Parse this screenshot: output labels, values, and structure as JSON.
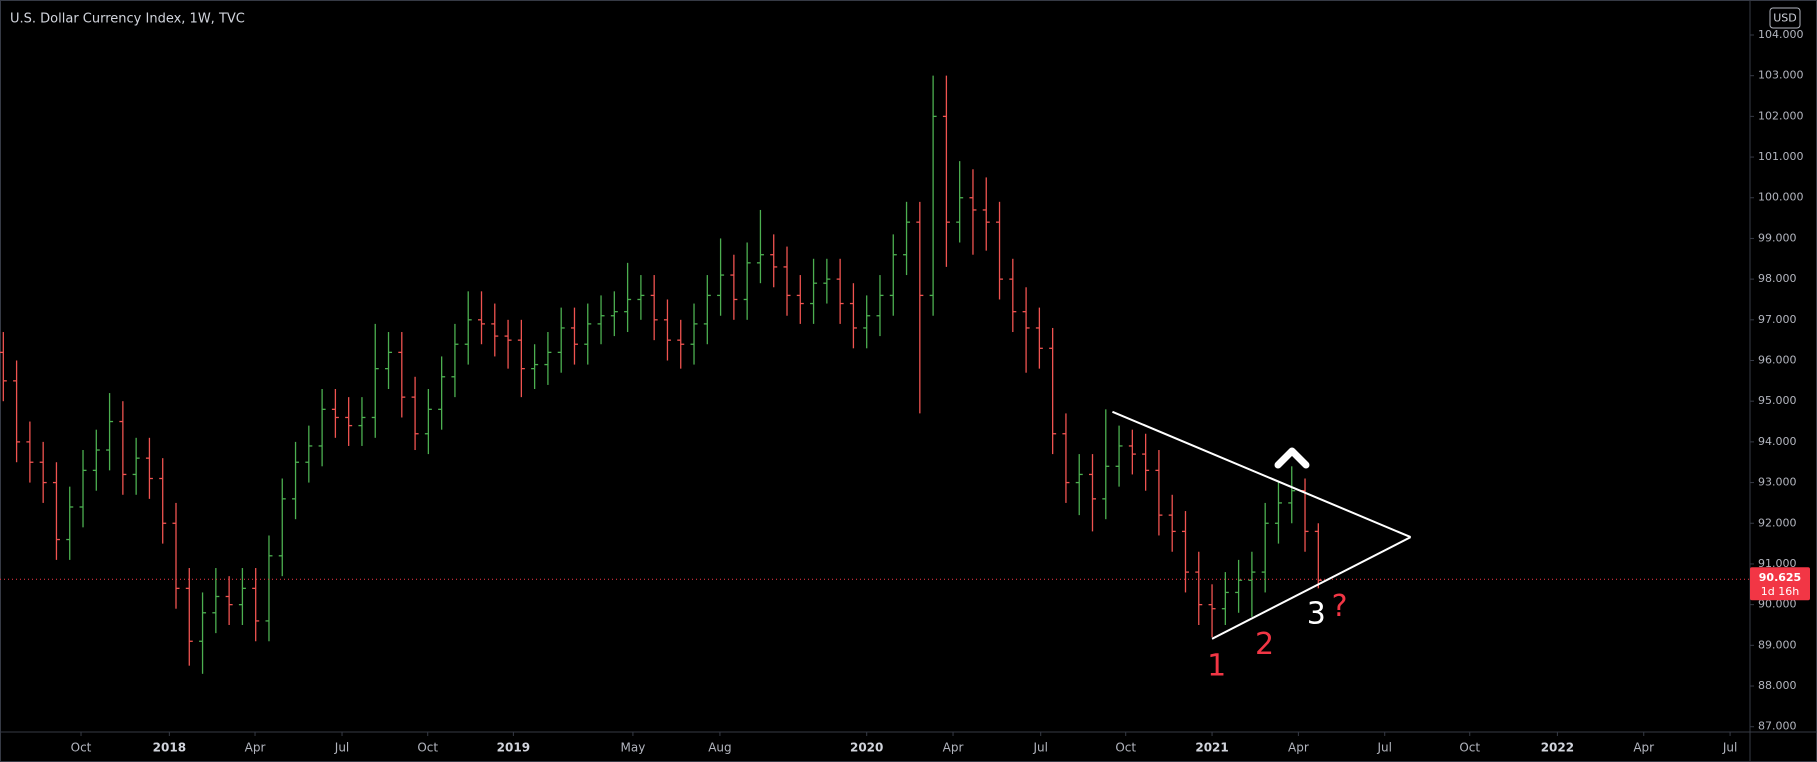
{
  "chart_data": {
    "type": "ohlc",
    "title": "U.S. Dollar Currency Index, 1W, TVC",
    "currency": "USD",
    "up_color": "#4caf50",
    "down_color": "#ef5350",
    "xlim": [
      -0.5,
      263
    ],
    "ylim": [
      86.87,
      104.86
    ],
    "grid": false,
    "xticks": [
      {
        "value": 11.7,
        "label": "Oct"
      },
      {
        "value": 25,
        "label": "2018"
      },
      {
        "value": 37.9,
        "label": "Apr"
      },
      {
        "value": 51,
        "label": "Jul"
      },
      {
        "value": 63.9,
        "label": "Oct"
      },
      {
        "value": 76.8,
        "label": "2019"
      },
      {
        "value": 94.8,
        "label": "May"
      },
      {
        "value": 107.9,
        "label": "Aug"
      },
      {
        "value": 130,
        "label": "2020"
      },
      {
        "value": 143,
        "label": "Apr"
      },
      {
        "value": 156.2,
        "label": "Jul"
      },
      {
        "value": 169,
        "label": "Oct"
      },
      {
        "value": 182,
        "label": "2021"
      },
      {
        "value": 195,
        "label": "Apr"
      },
      {
        "value": 208,
        "label": "Jul"
      },
      {
        "value": 220.8,
        "label": "Oct"
      },
      {
        "value": 234,
        "label": "2022"
      },
      {
        "value": 247,
        "label": "Apr"
      },
      {
        "value": 260,
        "label": "Jul"
      }
    ],
    "yticks": [
      {
        "value": 87,
        "label": "87.000"
      },
      {
        "value": 88,
        "label": "88.000"
      },
      {
        "value": 89,
        "label": "89.000"
      },
      {
        "value": 90,
        "label": "90.000"
      },
      {
        "value": 91,
        "label": "91.000"
      },
      {
        "value": 92,
        "label": "92.000"
      },
      {
        "value": 93,
        "label": "93.000"
      },
      {
        "value": 94,
        "label": "94.000"
      },
      {
        "value": 95,
        "label": "95.000"
      },
      {
        "value": 96,
        "label": "96.000"
      },
      {
        "value": 97,
        "label": "97.000"
      },
      {
        "value": 98,
        "label": "98.000"
      },
      {
        "value": 99,
        "label": "99.000"
      },
      {
        "value": 100,
        "label": "100.000"
      },
      {
        "value": 101,
        "label": "101.000"
      },
      {
        "value": 102,
        "label": "102.000"
      },
      {
        "value": 103,
        "label": "103.000"
      },
      {
        "value": 104,
        "label": "104.000"
      }
    ],
    "x": [
      0,
      2,
      4,
      6,
      8,
      10,
      12,
      14,
      16,
      18,
      20,
      22,
      24,
      26,
      28,
      30,
      32,
      34,
      36,
      38,
      40,
      42,
      44,
      46,
      48,
      50,
      52,
      54,
      56,
      58,
      60,
      62,
      64,
      66,
      68,
      70,
      72,
      74,
      76,
      78,
      80,
      82,
      84,
      86,
      88,
      90,
      92,
      94,
      96,
      98,
      100,
      102,
      104,
      106,
      108,
      110,
      112,
      114,
      116,
      118,
      120,
      122,
      124,
      126,
      128,
      130,
      132,
      134,
      136,
      138,
      140,
      142,
      144,
      146,
      148,
      150,
      152,
      154,
      156,
      158,
      160,
      162,
      164,
      166,
      168,
      170,
      172,
      174,
      176,
      178,
      180,
      182,
      184,
      186,
      188,
      190,
      192,
      194,
      196,
      198
    ],
    "open": [
      96.2,
      95.5,
      94.0,
      93.5,
      93.0,
      91.6,
      92.4,
      93.3,
      93.8,
      94.5,
      93.2,
      93.6,
      93.1,
      92.0,
      90.4,
      89.1,
      89.8,
      90.2,
      90.0,
      90.4,
      89.6,
      91.2,
      92.6,
      93.5,
      93.9,
      94.8,
      94.6,
      94.4,
      94.6,
      95.8,
      96.2,
      95.1,
      94.2,
      94.8,
      95.6,
      96.4,
      97.0,
      96.9,
      96.6,
      96.5,
      95.8,
      95.9,
      96.2,
      96.8,
      96.4,
      96.9,
      97.1,
      97.2,
      97.5,
      97.6,
      97.0,
      96.5,
      96.4,
      96.9,
      97.6,
      98.1,
      97.5,
      98.4,
      98.6,
      98.3,
      97.6,
      97.4,
      97.9,
      98.0,
      97.4,
      96.8,
      97.1,
      97.6,
      98.6,
      99.4,
      97.6,
      102.0,
      99.4,
      100.0,
      99.7,
      99.4,
      98.0,
      97.2,
      96.8,
      96.3,
      94.2,
      93.0,
      93.2,
      92.6,
      93.4,
      93.9,
      93.7,
      93.3,
      92.2,
      91.8,
      90.8,
      90.0,
      89.9,
      90.3,
      90.6,
      90.8,
      92.0,
      92.5,
      92.8,
      91.8
    ],
    "high": [
      96.7,
      96.0,
      94.5,
      94.0,
      93.5,
      92.9,
      93.8,
      94.3,
      95.2,
      95.0,
      94.1,
      94.1,
      93.6,
      92.5,
      90.9,
      90.3,
      90.9,
      90.7,
      90.9,
      90.9,
      91.7,
      93.1,
      94.0,
      94.4,
      95.3,
      95.3,
      95.1,
      95.1,
      96.9,
      96.7,
      96.7,
      95.6,
      95.3,
      96.1,
      96.9,
      97.7,
      97.7,
      97.4,
      97.0,
      97.0,
      96.4,
      96.7,
      97.3,
      97.3,
      97.4,
      97.6,
      97.7,
      98.4,
      98.1,
      98.1,
      97.5,
      97.0,
      97.4,
      98.1,
      99.0,
      98.6,
      98.9,
      99.7,
      99.1,
      98.8,
      98.1,
      98.5,
      98.5,
      98.5,
      97.9,
      97.6,
      98.1,
      99.1,
      99.9,
      99.9,
      103.0,
      103.0,
      100.9,
      100.7,
      100.5,
      99.9,
      98.5,
      97.8,
      97.3,
      96.8,
      94.7,
      93.7,
      93.7,
      94.8,
      94.4,
      94.3,
      94.2,
      93.8,
      92.7,
      92.3,
      91.3,
      90.5,
      90.8,
      91.1,
      91.3,
      92.5,
      93.0,
      93.4,
      93.1,
      92.0
    ],
    "low": [
      95.0,
      93.5,
      93.0,
      92.5,
      91.1,
      91.1,
      91.9,
      92.8,
      93.3,
      92.7,
      92.7,
      92.6,
      91.5,
      89.9,
      88.5,
      88.3,
      89.3,
      89.5,
      89.5,
      89.1,
      89.1,
      90.7,
      92.1,
      93.0,
      93.4,
      94.1,
      93.9,
      93.9,
      94.1,
      95.3,
      94.6,
      93.8,
      93.7,
      94.3,
      95.1,
      95.9,
      96.4,
      96.1,
      95.8,
      95.1,
      95.3,
      95.4,
      95.7,
      95.9,
      95.9,
      96.4,
      96.6,
      96.7,
      97.0,
      96.5,
      96.0,
      95.8,
      95.9,
      96.4,
      97.1,
      97.0,
      97.0,
      97.9,
      97.8,
      97.1,
      96.9,
      96.9,
      97.4,
      96.9,
      96.3,
      96.3,
      96.6,
      97.1,
      98.1,
      94.7,
      97.1,
      98.3,
      98.9,
      98.6,
      98.7,
      97.5,
      96.7,
      95.7,
      95.8,
      93.7,
      92.5,
      92.2,
      91.8,
      92.1,
      92.9,
      93.2,
      92.8,
      91.7,
      91.3,
      90.3,
      89.5,
      89.2,
      89.5,
      89.8,
      89.7,
      90.3,
      91.5,
      92.0,
      91.3,
      90.4
    ],
    "close": [
      95.5,
      94.0,
      93.5,
      93.0,
      91.6,
      92.4,
      93.3,
      93.8,
      94.5,
      93.2,
      93.6,
      93.1,
      92.0,
      90.4,
      89.1,
      89.8,
      90.2,
      90.0,
      90.4,
      89.6,
      91.2,
      92.6,
      93.5,
      93.9,
      94.8,
      94.6,
      94.4,
      94.6,
      95.8,
      96.2,
      95.1,
      94.2,
      94.8,
      95.6,
      96.4,
      97.0,
      96.9,
      96.6,
      96.5,
      95.8,
      95.9,
      96.2,
      96.8,
      96.4,
      96.9,
      97.1,
      97.2,
      97.5,
      97.6,
      97.0,
      96.5,
      96.4,
      96.9,
      97.6,
      98.1,
      97.5,
      98.4,
      98.6,
      98.3,
      97.6,
      97.4,
      97.9,
      98.0,
      97.4,
      96.8,
      97.1,
      97.6,
      98.6,
      99.4,
      97.6,
      102.0,
      99.4,
      100.0,
      99.7,
      99.4,
      98.0,
      97.2,
      96.8,
      96.3,
      94.2,
      93.0,
      93.2,
      92.6,
      93.4,
      93.9,
      93.7,
      93.3,
      92.2,
      91.8,
      90.8,
      90.0,
      89.9,
      90.3,
      90.6,
      90.8,
      92.0,
      92.5,
      92.8,
      91.8,
      90.6
    ],
    "last_price": {
      "value": 90.625,
      "label": "90.625",
      "countdown": "1d 16h",
      "color": "#f23645"
    },
    "trendlines": [
      {
        "x": [
          167,
          211.9
        ],
        "y": [
          94.74,
          91.66
        ],
        "color": "#ffffff"
      },
      {
        "x": [
          182,
          211.9
        ],
        "y": [
          89.16,
          91.66
        ],
        "color": "#ffffff"
      }
    ],
    "annotations": [
      {
        "text": "1",
        "x": 182.7,
        "y": 88.47,
        "color": "#f23645"
      },
      {
        "text": "2",
        "x": 189.9,
        "y": 89.0,
        "color": "#f23645"
      },
      {
        "text": "3",
        "x": 197.7,
        "y": 89.75,
        "color": "#ffffff"
      },
      {
        "text": "?",
        "x": 201.2,
        "y": 89.93,
        "color": "#f23645"
      }
    ]
  }
}
